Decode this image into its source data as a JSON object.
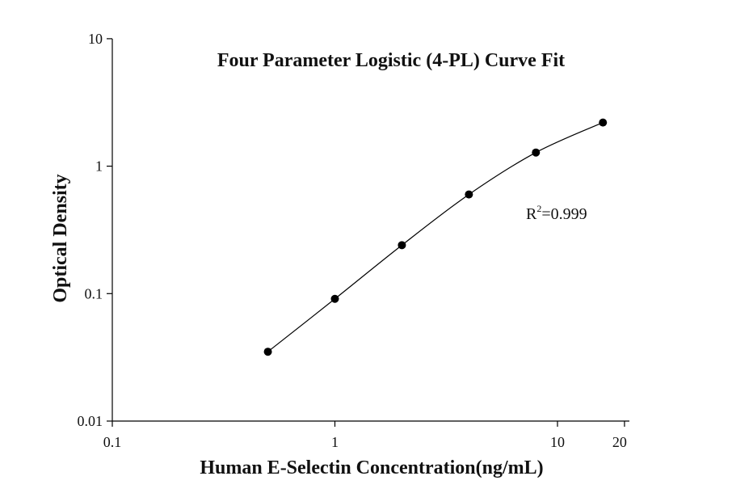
{
  "chart_data": {
    "type": "scatter",
    "title": "Four Parameter Logistic (4-PL) Curve Fit",
    "xlabel": "Human E-Selectin Concentration(ng/mL)",
    "ylabel": "Optical Density",
    "xscale": "log",
    "yscale": "log",
    "xlim": [
      0.1,
      20
    ],
    "ylim": [
      0.01,
      10
    ],
    "x_ticks": [
      "0.1",
      "1",
      "10",
      "20"
    ],
    "x_tick_values": [
      0.1,
      1,
      10,
      20
    ],
    "y_ticks": [
      "0.01",
      "0.1",
      "1",
      "10"
    ],
    "y_tick_values": [
      0.01,
      0.1,
      1,
      10
    ],
    "grid": false,
    "series": [
      {
        "x": [
          0.5,
          1,
          2,
          4,
          8,
          16
        ],
        "y": [
          0.035,
          0.091,
          0.24,
          0.6,
          1.28,
          2.2
        ]
      }
    ],
    "fit_curve": {
      "model": "4-PL",
      "annotation_base": "R",
      "annotation_sup": "2",
      "annotation_value": "=0.999"
    }
  }
}
